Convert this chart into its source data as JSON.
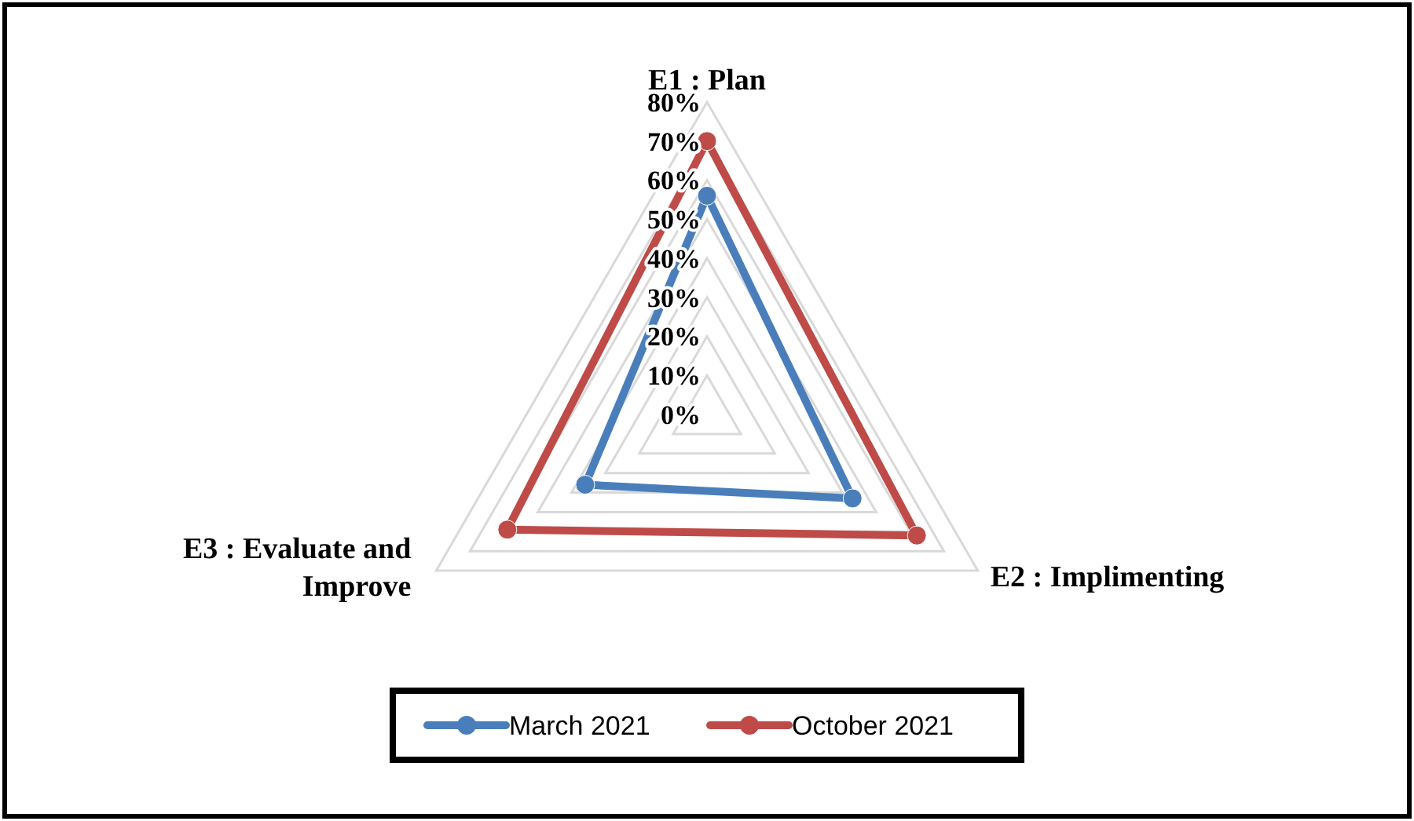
{
  "chart_data": {
    "type": "radar",
    "categories": [
      "E1 : Plan",
      "E2 : Implimenting",
      "E3 : Evaluate and Improve"
    ],
    "series": [
      {
        "name": "March 2021",
        "color": "#4a7ebb",
        "values": [
          56,
          43,
          36
        ]
      },
      {
        "name": "October 2021",
        "color": "#be4b48",
        "values": [
          70,
          62,
          59
        ]
      }
    ],
    "ylim": [
      0,
      80
    ],
    "yticks": [
      {
        "value": 0,
        "label": "0%"
      },
      {
        "value": 10,
        "label": "10%"
      },
      {
        "value": 20,
        "label": "20%"
      },
      {
        "value": 30,
        "label": "30%"
      },
      {
        "value": 40,
        "label": "40%"
      },
      {
        "value": 50,
        "label": "50%"
      },
      {
        "value": 60,
        "label": "60%"
      },
      {
        "value": 70,
        "label": "70%"
      },
      {
        "value": 80,
        "label": "80%"
      }
    ],
    "grid": true,
    "marker": "circle",
    "legend": "bottom"
  }
}
